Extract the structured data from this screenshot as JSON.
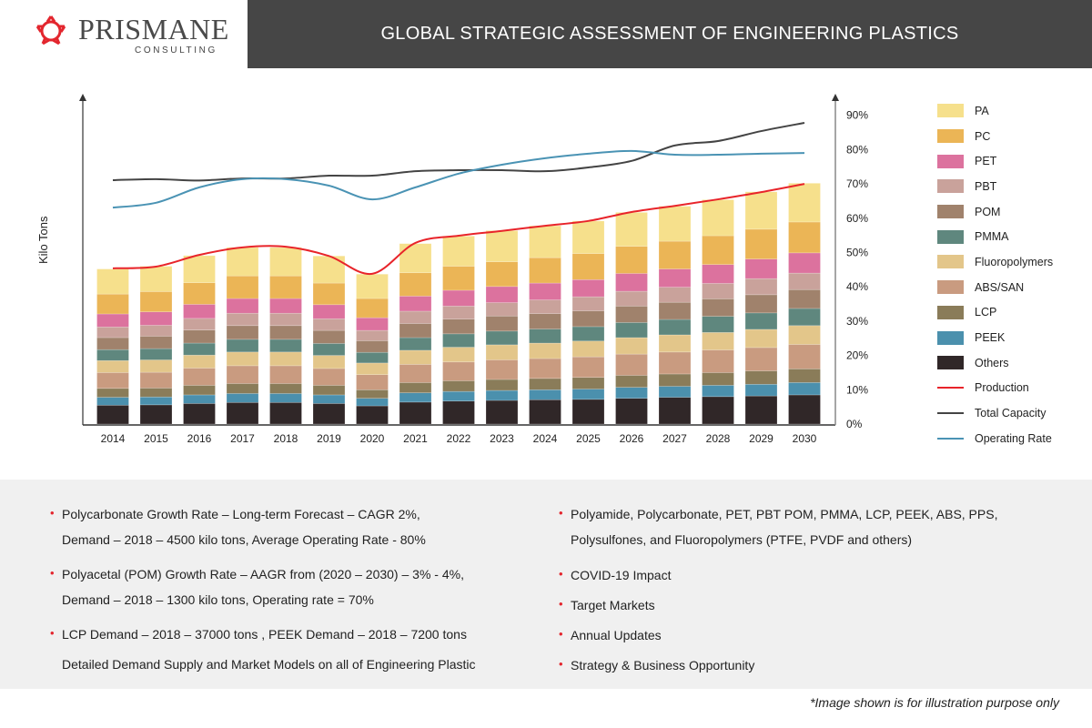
{
  "header": {
    "logo_name": "PRISMANE",
    "logo_sub": "CONSULTING",
    "title": "GLOBAL STRATEGIC ASSESSMENT OF ENGINEERING PLASTICS"
  },
  "chart_data": {
    "type": "bar",
    "stacked": true,
    "title": "",
    "xlabel": "",
    "ylabel": "Kilo Tons",
    "y2_ticks": [
      "0%",
      "10%",
      "20%",
      "30%",
      "40%",
      "50%",
      "60%",
      "70%",
      "80%",
      "90%"
    ],
    "y2lim": [
      0,
      90
    ],
    "grid": false,
    "legend_position": "right",
    "categories": [
      "2014",
      "2015",
      "2016",
      "2017",
      "2018",
      "2019",
      "2020",
      "2021",
      "2022",
      "2023",
      "2024",
      "2025",
      "2026",
      "2027",
      "2028",
      "2029",
      "2030"
    ],
    "series": [
      {
        "name": "Others",
        "color": "#302728",
        "values": [
          5.5,
          5.6,
          6.0,
          6.3,
          6.3,
          6.0,
          5.3,
          6.4,
          6.7,
          6.9,
          7.1,
          7.2,
          7.5,
          7.8,
          8.0,
          8.2,
          8.5
        ]
      },
      {
        "name": "PEEK",
        "color": "#4b90ad",
        "values": [
          2.3,
          2.3,
          2.5,
          2.6,
          2.6,
          2.5,
          2.2,
          2.7,
          2.8,
          2.9,
          2.9,
          3.0,
          3.2,
          3.2,
          3.3,
          3.4,
          3.6
        ]
      },
      {
        "name": "LCP",
        "color": "#8a7c59",
        "values": [
          2.6,
          2.6,
          2.8,
          2.9,
          2.9,
          2.8,
          2.5,
          3.0,
          3.1,
          3.2,
          3.3,
          3.4,
          3.5,
          3.6,
          3.7,
          3.9,
          4.0
        ]
      },
      {
        "name": "ABS/SAN",
        "color": "#c99b80",
        "values": [
          4.6,
          4.6,
          5.0,
          5.2,
          5.2,
          4.9,
          4.4,
          5.3,
          5.5,
          5.7,
          5.8,
          6.0,
          6.2,
          6.4,
          6.6,
          6.8,
          7.1
        ]
      },
      {
        "name": "Fluoropolymers",
        "color": "#e3c68a",
        "values": [
          3.5,
          3.6,
          3.8,
          4.0,
          4.0,
          3.8,
          3.4,
          4.1,
          4.3,
          4.4,
          4.5,
          4.6,
          4.8,
          5.0,
          5.1,
          5.3,
          5.5
        ]
      },
      {
        "name": "PMMA",
        "color": "#5f877e",
        "values": [
          3.2,
          3.3,
          3.5,
          3.7,
          3.7,
          3.5,
          3.1,
          3.7,
          3.9,
          4.0,
          4.1,
          4.2,
          4.4,
          4.5,
          4.7,
          4.8,
          5.0
        ]
      },
      {
        "name": "POM",
        "color": "#a0826c",
        "values": [
          3.5,
          3.6,
          3.8,
          4.0,
          4.0,
          3.8,
          3.4,
          4.1,
          4.3,
          4.4,
          4.5,
          4.6,
          4.8,
          5.0,
          5.1,
          5.3,
          5.5
        ]
      },
      {
        "name": "PBT",
        "color": "#c9a29b",
        "values": [
          3.1,
          3.2,
          3.4,
          3.6,
          3.6,
          3.4,
          3.0,
          3.6,
          3.8,
          3.9,
          4.0,
          4.1,
          4.3,
          4.4,
          4.5,
          4.7,
          4.8
        ]
      },
      {
        "name": "PET",
        "color": "#dc729e",
        "values": [
          3.8,
          3.9,
          4.1,
          4.3,
          4.3,
          4.1,
          3.7,
          4.4,
          4.6,
          4.7,
          4.9,
          5.0,
          5.2,
          5.3,
          5.5,
          5.7,
          5.9
        ]
      },
      {
        "name": "PC",
        "color": "#ebb556",
        "values": [
          5.8,
          5.9,
          6.3,
          6.6,
          6.6,
          6.3,
          5.6,
          6.8,
          7.0,
          7.2,
          7.4,
          7.6,
          7.9,
          8.1,
          8.4,
          8.7,
          9.0
        ]
      },
      {
        "name": "PA",
        "color": "#f6e08c",
        "values": [
          7.3,
          7.4,
          7.9,
          8.3,
          8.3,
          7.9,
          7.1,
          8.5,
          8.8,
          9.1,
          9.3,
          9.5,
          9.9,
          10.2,
          10.5,
          10.9,
          11.3
        ]
      }
    ],
    "lines": [
      {
        "name": "Production",
        "color": "#e8242a",
        "values": [
          45.4,
          45.9,
          49.3,
          51.5,
          51.7,
          49.0,
          43.8,
          52.8,
          54.9,
          56.3,
          57.8,
          59.2,
          61.8,
          63.6,
          65.5,
          67.6,
          70.0
        ]
      },
      {
        "name": "Total Capacity",
        "color": "#444444",
        "values": [
          71.1,
          71.4,
          71.0,
          71.6,
          71.6,
          72.4,
          72.4,
          73.7,
          74.0,
          74.0,
          73.7,
          74.8,
          76.7,
          81.2,
          82.5,
          85.4,
          87.8
        ]
      },
      {
        "name": "Operating Rate",
        "color": "#4a93b4",
        "values": [
          63.1,
          64.5,
          69.0,
          71.4,
          71.4,
          69.5,
          65.5,
          69.0,
          73.0,
          75.6,
          77.5,
          78.8,
          79.6,
          78.5,
          78.5,
          78.8,
          79.0
        ]
      }
    ],
    "legend_order": [
      "PA",
      "PC",
      "PET",
      "PBT",
      "POM",
      "PMMA",
      "Fluoropolymers",
      "ABS/SAN",
      "LCP",
      "PEEK",
      "Others",
      "Production",
      "Total Capacity",
      "Operating Rate"
    ]
  },
  "info": {
    "left": [
      "Polycarbonate Growth Rate – Long-term Forecast – CAGR  2%,",
      "Demand – 2018 –  4500 kilo tons, Average Operating Rate - 80%",
      "Polyacetal (POM) Growth Rate –  AAGR from (2020 – 2030) – 3% - 4%,",
      "Demand – 2018 – 1300 kilo tons, Operating rate = 70%",
      "LCP Demand – 2018 – 37000 tons , PEEK Demand – 2018 –  7200 tons",
      "Detailed Demand Supply and Market Models on all of Engineering Plastic"
    ],
    "right": [
      "Polyamide, Polycarbonate, PET, PBT POM, PMMA, LCP, PEEK, ABS, PPS,",
      "Polysulfones,  and Fluoropolymers  (PTFE, PVDF and others)",
      "COVID-19 Impact",
      "Target Markets",
      "Annual Updates",
      "Strategy & Business Opportunity"
    ],
    "note": "*Image shown is for illustration purpose only"
  }
}
